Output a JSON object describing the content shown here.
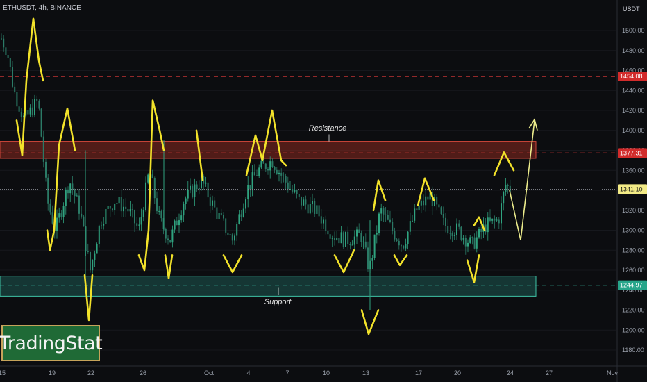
{
  "header": {
    "symbol": "ETHUSDT, 4h, BINANCE",
    "unit": "USDT"
  },
  "logo": {
    "text": "TradingStat"
  },
  "colors": {
    "background": "#0c0d10",
    "bull": "#2fa37f",
    "bear": "#2b7a66",
    "resistance_zone": "#8a2a1f",
    "support_zone": "#1d5a52",
    "resistance_line": "#e23b3b",
    "support_line": "#36b8a0",
    "drawing": "#f2e22a",
    "arrow": "#ecec8c"
  },
  "chart_data": {
    "type": "candlestick",
    "title": "",
    "y_axis": {
      "ticks": [
        1500,
        1480,
        1460,
        1440,
        1420,
        1400,
        1380,
        1360,
        1340,
        1320,
        1300,
        1280,
        1260,
        1240,
        1220,
        1200,
        1180
      ],
      "tick_labels": [
        "1500.00",
        "1480.00",
        "1460.00",
        "1440.00",
        "1420.00",
        "1400.00",
        "1380.00",
        "1360.00",
        "1340.00",
        "1320.00",
        "1300.00",
        "1280.00",
        "1260.00",
        "1240.00",
        "1220.00",
        "1200.00",
        "1180.00"
      ],
      "range": [
        1172,
        1520
      ]
    },
    "x_axis": {
      "ticks": [
        "15",
        "19",
        "22",
        "26",
        "Oct",
        "4",
        "7",
        "10",
        "13",
        "17",
        "20",
        "24",
        "27",
        "Nov"
      ]
    },
    "price_labels": [
      {
        "value": 1454.08,
        "label": "1454.08",
        "style": "resistance-line"
      },
      {
        "value": 1377.31,
        "label": "1377.31",
        "style": "resistance-line"
      },
      {
        "value": 1341.1,
        "label": "1341.10",
        "style": "current"
      },
      {
        "value": 1244.97,
        "label": "1244.97",
        "style": "support-line"
      }
    ],
    "zones": [
      {
        "name": "Resistance",
        "from": 1372,
        "to": 1389
      },
      {
        "name": "Support",
        "from": 1234,
        "to": 1254
      }
    ],
    "annotations": [
      {
        "text": "Resistance",
        "x": "Oct 5",
        "y": 1402
      },
      {
        "text": "Support",
        "x": "Oct 3",
        "y": 1228
      }
    ],
    "zigzag_lows": [
      1290,
      1290,
      1210,
      1272,
      1254,
      1268,
      1242,
      1258,
      1267,
      1269,
      1196,
      1268,
      1248
    ],
    "zigzag_highs": [
      1513,
      1422,
      1420,
      1392,
      1399,
      1418,
      1307,
      1313,
      1356,
      1351,
      1378
    ]
  }
}
